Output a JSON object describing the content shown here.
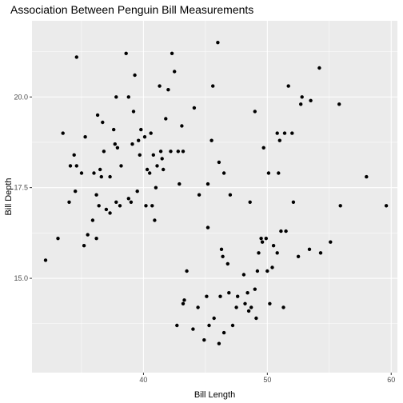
{
  "chart_data": {
    "type": "scatter",
    "title": "Association Between Penguin Bill Measurements",
    "xlabel": "Bill Length",
    "ylabel": "Bill Depth",
    "xlim": [
      31.0,
      60.5
    ],
    "ylim": [
      12.4,
      22.1
    ],
    "x_ticks": [
      40,
      50,
      60
    ],
    "y_ticks": [
      15.0,
      17.5,
      20.0
    ],
    "x_tick_labels": [
      "40",
      "50",
      "60"
    ],
    "y_tick_labels": [
      "15.0",
      "17.5",
      "20.0"
    ],
    "grid": true,
    "colors": {
      "panel": "#ebebeb",
      "grid_major": "#ffffff",
      "point": "#000000"
    },
    "points": [
      [
        32.1,
        15.5
      ],
      [
        33.1,
        16.1
      ],
      [
        33.5,
        19.0
      ],
      [
        34.0,
        17.1
      ],
      [
        34.1,
        18.1
      ],
      [
        34.4,
        18.4
      ],
      [
        34.5,
        17.4
      ],
      [
        34.6,
        21.1
      ],
      [
        34.6,
        18.1
      ],
      [
        35.0,
        17.9
      ],
      [
        35.3,
        18.9
      ],
      [
        35.5,
        16.2
      ],
      [
        35.9,
        16.6
      ],
      [
        35.2,
        15.9
      ],
      [
        36.2,
        17.3
      ],
      [
        36.0,
        17.9
      ],
      [
        36.3,
        19.5
      ],
      [
        36.5,
        18.0
      ],
      [
        36.6,
        17.8
      ],
      [
        36.7,
        19.3
      ],
      [
        36.4,
        17.0
      ],
      [
        36.2,
        16.1
      ],
      [
        36.8,
        18.5
      ],
      [
        37.0,
        16.9
      ],
      [
        37.3,
        17.8
      ],
      [
        37.3,
        16.8
      ],
      [
        37.6,
        19.1
      ],
      [
        37.7,
        18.7
      ],
      [
        37.8,
        17.1
      ],
      [
        37.8,
        20.0
      ],
      [
        37.9,
        18.6
      ],
      [
        38.1,
        17.0
      ],
      [
        38.2,
        18.1
      ],
      [
        38.6,
        21.2
      ],
      [
        38.8,
        17.2
      ],
      [
        38.8,
        20.0
      ],
      [
        39.0,
        17.1
      ],
      [
        39.1,
        18.7
      ],
      [
        39.2,
        19.6
      ],
      [
        39.3,
        20.6
      ],
      [
        39.5,
        17.4
      ],
      [
        39.6,
        18.8
      ],
      [
        39.7,
        18.4
      ],
      [
        39.8,
        19.1
      ],
      [
        40.1,
        18.9
      ],
      [
        40.2,
        17.0
      ],
      [
        40.3,
        18.0
      ],
      [
        40.5,
        17.9
      ],
      [
        40.6,
        19.0
      ],
      [
        40.7,
        17.0
      ],
      [
        40.8,
        18.4
      ],
      [
        40.9,
        16.6
      ],
      [
        41.1,
        18.1
      ],
      [
        41.0,
        17.5
      ],
      [
        41.3,
        20.3
      ],
      [
        41.4,
        18.5
      ],
      [
        41.5,
        18.3
      ],
      [
        41.6,
        18.0
      ],
      [
        41.8,
        19.4
      ],
      [
        42.0,
        20.2
      ],
      [
        42.2,
        18.5
      ],
      [
        42.3,
        21.2
      ],
      [
        42.5,
        20.7
      ],
      [
        42.8,
        18.5
      ],
      [
        42.9,
        17.6
      ],
      [
        43.1,
        19.2
      ],
      [
        43.2,
        18.5
      ],
      [
        44.1,
        19.7
      ],
      [
        44.5,
        17.3
      ],
      [
        45.2,
        17.6
      ],
      [
        45.6,
        20.3
      ],
      [
        46.0,
        21.5
      ],
      [
        45.5,
        18.8
      ],
      [
        46.1,
        18.2
      ],
      [
        46.5,
        17.9
      ],
      [
        47.0,
        17.3
      ],
      [
        45.2,
        16.4
      ],
      [
        43.3,
        14.4
      ],
      [
        44.0,
        13.6
      ],
      [
        44.4,
        14.2
      ],
      [
        45.1,
        14.5
      ],
      [
        45.7,
        13.9
      ],
      [
        46.1,
        13.2
      ],
      [
        46.2,
        14.5
      ],
      [
        46.5,
        13.5
      ],
      [
        46.8,
        15.4
      ],
      [
        46.9,
        14.6
      ],
      [
        47.2,
        13.7
      ],
      [
        47.6,
        14.5
      ],
      [
        48.1,
        15.1
      ],
      [
        48.5,
        14.1
      ],
      [
        48.7,
        14.2
      ],
      [
        49.0,
        14.7
      ],
      [
        49.1,
        13.9
      ],
      [
        49.3,
        15.7
      ],
      [
        49.6,
        16.0
      ],
      [
        49.9,
        16.1
      ],
      [
        50.0,
        15.2
      ],
      [
        50.4,
        15.3
      ],
      [
        50.8,
        15.7
      ],
      [
        51.1,
        16.3
      ],
      [
        51.3,
        14.2
      ],
      [
        51.5,
        16.3
      ],
      [
        52.1,
        17.1
      ],
      [
        52.5,
        15.6
      ],
      [
        53.4,
        15.8
      ],
      [
        54.3,
        15.7
      ],
      [
        55.1,
        16.0
      ],
      [
        55.9,
        17.0
      ],
      [
        58.0,
        17.8
      ],
      [
        59.6,
        17.0
      ],
      [
        43.2,
        14.3
      ],
      [
        44.9,
        13.3
      ],
      [
        45.3,
        13.7
      ],
      [
        47.5,
        14.2
      ],
      [
        48.4,
        14.6
      ],
      [
        49.5,
        16.1
      ],
      [
        50.2,
        14.3
      ],
      [
        46.4,
        15.6
      ],
      [
        48.2,
        14.3
      ],
      [
        46.3,
        15.8
      ],
      [
        42.7,
        13.7
      ],
      [
        49.2,
        15.2
      ],
      [
        50.5,
        15.9
      ],
      [
        43.5,
        15.2
      ],
      [
        51.0,
        18.8
      ],
      [
        52.0,
        19.0
      ],
      [
        49.0,
        19.6
      ],
      [
        50.8,
        19.0
      ],
      [
        53.5,
        19.9
      ],
      [
        52.8,
        20.0
      ],
      [
        54.2,
        20.8
      ],
      [
        51.7,
        20.3
      ],
      [
        52.7,
        19.8
      ],
      [
        55.8,
        19.8
      ],
      [
        50.9,
        17.9
      ],
      [
        50.1,
        17.9
      ],
      [
        49.7,
        18.6
      ],
      [
        51.4,
        19.0
      ],
      [
        48.6,
        17.1
      ]
    ]
  }
}
